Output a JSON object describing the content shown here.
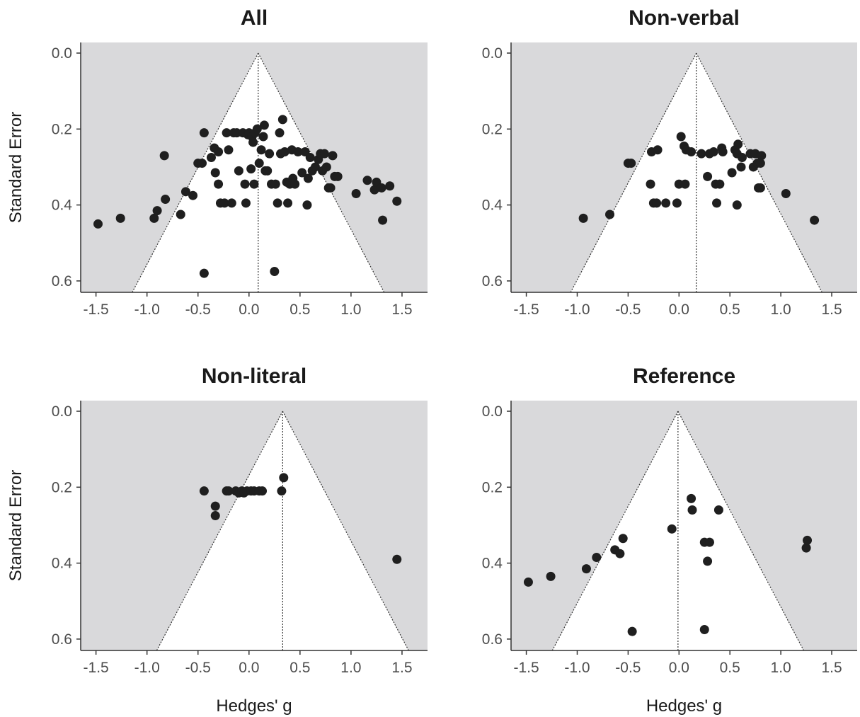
{
  "figure": {
    "ylabel": "Standard Error",
    "xlabel": "Hedges' g"
  },
  "colors": {
    "funnel_outside": "#d9d9db",
    "funnel_inside": "#ffffff",
    "points": "#1f1f1f",
    "axis": "#333333",
    "ticks_text": "#4d4d4d"
  },
  "chart_data": [
    {
      "type": "scatter",
      "subtype": "funnel",
      "title": "All",
      "xlabel": "",
      "ylabel": "Standard Error",
      "xlim": [
        -1.65,
        1.75
      ],
      "ylim": [
        0.0,
        0.63
      ],
      "y_reversed": true,
      "x_ticks": [
        -1.5,
        -1.0,
        -0.5,
        0.0,
        0.5,
        1.0,
        1.5
      ],
      "x_tick_labels": [
        "-1.5",
        "-1.0",
        "-0.5",
        "0.0",
        "0.5",
        "1.0",
        "1.5"
      ],
      "y_ticks": [
        0.0,
        0.2,
        0.4,
        0.6
      ],
      "y_tick_labels": [
        "0.0",
        "0.2",
        "0.4",
        "0.6"
      ],
      "funnel_center": 0.09,
      "funnel_apex_se": 0.0,
      "points": [
        [
          -1.48,
          0.45
        ],
        [
          -1.26,
          0.435
        ],
        [
          -0.93,
          0.435
        ],
        [
          -0.9,
          0.415
        ],
        [
          -0.82,
          0.385
        ],
        [
          -0.83,
          0.27
        ],
        [
          -0.67,
          0.425
        ],
        [
          -0.62,
          0.365
        ],
        [
          -0.55,
          0.375
        ],
        [
          -0.5,
          0.29
        ],
        [
          -0.46,
          0.29
        ],
        [
          -0.44,
          0.21
        ],
        [
          -0.44,
          0.58
        ],
        [
          -0.37,
          0.275
        ],
        [
          -0.34,
          0.25
        ],
        [
          -0.33,
          0.315
        ],
        [
          -0.3,
          0.26
        ],
        [
          -0.3,
          0.345
        ],
        [
          -0.28,
          0.395
        ],
        [
          -0.24,
          0.395
        ],
        [
          -0.22,
          0.21
        ],
        [
          -0.2,
          0.255
        ],
        [
          -0.17,
          0.395
        ],
        [
          -0.15,
          0.21
        ],
        [
          -0.12,
          0.21
        ],
        [
          -0.1,
          0.31
        ],
        [
          -0.06,
          0.21
        ],
        [
          -0.04,
          0.345
        ],
        [
          -0.03,
          0.395
        ],
        [
          -0.01,
          0.215
        ],
        [
          0.0,
          0.21
        ],
        [
          0.02,
          0.305
        ],
        [
          0.03,
          0.22
        ],
        [
          0.04,
          0.235
        ],
        [
          0.05,
          0.345
        ],
        [
          0.06,
          0.21
        ],
        [
          0.08,
          0.2
        ],
        [
          0.1,
          0.29
        ],
        [
          0.12,
          0.255
        ],
        [
          0.14,
          0.22
        ],
        [
          0.15,
          0.19
        ],
        [
          0.16,
          0.31
        ],
        [
          0.18,
          0.31
        ],
        [
          0.2,
          0.265
        ],
        [
          0.22,
          0.345
        ],
        [
          0.25,
          0.575
        ],
        [
          0.26,
          0.345
        ],
        [
          0.28,
          0.395
        ],
        [
          0.3,
          0.21
        ],
        [
          0.31,
          0.265
        ],
        [
          0.33,
          0.175
        ],
        [
          0.35,
          0.26
        ],
        [
          0.37,
          0.34
        ],
        [
          0.38,
          0.395
        ],
        [
          0.4,
          0.345
        ],
        [
          0.42,
          0.255
        ],
        [
          0.43,
          0.33
        ],
        [
          0.45,
          0.345
        ],
        [
          0.48,
          0.26
        ],
        [
          0.52,
          0.315
        ],
        [
          0.55,
          0.26
        ],
        [
          0.57,
          0.4
        ],
        [
          0.58,
          0.33
        ],
        [
          0.6,
          0.275
        ],
        [
          0.62,
          0.31
        ],
        [
          0.65,
          0.3
        ],
        [
          0.68,
          0.28
        ],
        [
          0.7,
          0.265
        ],
        [
          0.72,
          0.31
        ],
        [
          0.74,
          0.265
        ],
        [
          0.76,
          0.3
        ],
        [
          0.78,
          0.355
        ],
        [
          0.8,
          0.355
        ],
        [
          0.82,
          0.27
        ],
        [
          0.84,
          0.325
        ],
        [
          0.87,
          0.325
        ],
        [
          1.05,
          0.37
        ],
        [
          1.16,
          0.335
        ],
        [
          1.23,
          0.36
        ],
        [
          1.25,
          0.34
        ],
        [
          1.3,
          0.355
        ],
        [
          1.31,
          0.44
        ],
        [
          1.38,
          0.35
        ],
        [
          1.45,
          0.39
        ]
      ]
    },
    {
      "type": "scatter",
      "subtype": "funnel",
      "title": "Non-verbal",
      "xlabel": "",
      "ylabel": "",
      "xlim": [
        -1.65,
        1.75
      ],
      "ylim": [
        0.0,
        0.63
      ],
      "y_reversed": true,
      "x_ticks": [
        -1.5,
        -1.0,
        -0.5,
        0.0,
        0.5,
        1.0,
        1.5
      ],
      "x_tick_labels": [
        "-1.5",
        "-1.0",
        "-0.5",
        "0.0",
        "0.5",
        "1.0",
        "1.5"
      ],
      "y_ticks": [
        0.0,
        0.2,
        0.4,
        0.6
      ],
      "y_tick_labels": [
        "0.0",
        "0.2",
        "0.4",
        "0.6"
      ],
      "funnel_center": 0.17,
      "funnel_apex_se": 0.0,
      "points": [
        [
          -0.94,
          0.435
        ],
        [
          -0.68,
          0.425
        ],
        [
          -0.5,
          0.29
        ],
        [
          -0.47,
          0.29
        ],
        [
          -0.28,
          0.345
        ],
        [
          -0.27,
          0.26
        ],
        [
          -0.25,
          0.395
        ],
        [
          -0.22,
          0.395
        ],
        [
          -0.21,
          0.255
        ],
        [
          -0.13,
          0.395
        ],
        [
          -0.02,
          0.395
        ],
        [
          0.0,
          0.345
        ],
        [
          0.02,
          0.22
        ],
        [
          0.05,
          0.245
        ],
        [
          0.06,
          0.345
        ],
        [
          0.07,
          0.255
        ],
        [
          0.12,
          0.26
        ],
        [
          0.22,
          0.265
        ],
        [
          0.28,
          0.325
        ],
        [
          0.3,
          0.265
        ],
        [
          0.34,
          0.26
        ],
        [
          0.36,
          0.345
        ],
        [
          0.37,
          0.395
        ],
        [
          0.4,
          0.345
        ],
        [
          0.42,
          0.25
        ],
        [
          0.43,
          0.26
        ],
        [
          0.52,
          0.315
        ],
        [
          0.55,
          0.255
        ],
        [
          0.57,
          0.4
        ],
        [
          0.57,
          0.265
        ],
        [
          0.58,
          0.24
        ],
        [
          0.61,
          0.3
        ],
        [
          0.62,
          0.275
        ],
        [
          0.7,
          0.265
        ],
        [
          0.73,
          0.3
        ],
        [
          0.75,
          0.265
        ],
        [
          0.77,
          0.29
        ],
        [
          0.78,
          0.355
        ],
        [
          0.8,
          0.355
        ],
        [
          0.8,
          0.29
        ],
        [
          0.81,
          0.27
        ],
        [
          1.05,
          0.37
        ],
        [
          1.33,
          0.44
        ]
      ]
    },
    {
      "type": "scatter",
      "subtype": "funnel",
      "title": "Non-literal",
      "xlabel": "Hedges' g",
      "ylabel": "Standard Error",
      "xlim": [
        -1.65,
        1.75
      ],
      "ylim": [
        0.0,
        0.63
      ],
      "y_reversed": true,
      "x_ticks": [
        -1.5,
        -1.0,
        -0.5,
        0.0,
        0.5,
        1.0,
        1.5
      ],
      "x_tick_labels": [
        "-1.5",
        "-1.0",
        "-0.5",
        "0.0",
        "0.5",
        "1.0",
        "1.5"
      ],
      "y_ticks": [
        0.0,
        0.2,
        0.4,
        0.6
      ],
      "y_tick_labels": [
        "0.0",
        "0.2",
        "0.4",
        "0.6"
      ],
      "funnel_center": 0.33,
      "funnel_apex_se": 0.0,
      "points": [
        [
          -0.44,
          0.21
        ],
        [
          -0.33,
          0.25
        ],
        [
          -0.33,
          0.275
        ],
        [
          -0.22,
          0.21
        ],
        [
          -0.2,
          0.21
        ],
        [
          -0.13,
          0.21
        ],
        [
          -0.1,
          0.215
        ],
        [
          -0.07,
          0.21
        ],
        [
          -0.05,
          0.215
        ],
        [
          -0.02,
          0.21
        ],
        [
          0.02,
          0.21
        ],
        [
          0.05,
          0.21
        ],
        [
          0.1,
          0.21
        ],
        [
          0.13,
          0.21
        ],
        [
          0.32,
          0.21
        ],
        [
          0.34,
          0.175
        ],
        [
          1.45,
          0.39
        ]
      ]
    },
    {
      "type": "scatter",
      "subtype": "funnel",
      "title": "Reference",
      "xlabel": "Hedges' g",
      "ylabel": "",
      "xlim": [
        -1.65,
        1.75
      ],
      "ylim": [
        0.0,
        0.63
      ],
      "y_reversed": true,
      "x_ticks": [
        -1.5,
        -1.0,
        -0.5,
        0.0,
        0.5,
        1.0,
        1.5
      ],
      "x_tick_labels": [
        "-1.5",
        "-1.0",
        "-0.5",
        "0.0",
        "0.5",
        "1.0",
        "1.5"
      ],
      "y_ticks": [
        0.0,
        0.2,
        0.4,
        0.6
      ],
      "y_tick_labels": [
        "0.0",
        "0.2",
        "0.4",
        "0.6"
      ],
      "funnel_center": -0.01,
      "funnel_apex_se": 0.0,
      "points": [
        [
          -1.48,
          0.45
        ],
        [
          -1.26,
          0.435
        ],
        [
          -0.91,
          0.415
        ],
        [
          -0.81,
          0.385
        ],
        [
          -0.63,
          0.365
        ],
        [
          -0.58,
          0.375
        ],
        [
          -0.55,
          0.335
        ],
        [
          -0.46,
          0.58
        ],
        [
          -0.07,
          0.31
        ],
        [
          0.12,
          0.23
        ],
        [
          0.13,
          0.26
        ],
        [
          0.25,
          0.575
        ],
        [
          0.25,
          0.345
        ],
        [
          0.28,
          0.395
        ],
        [
          0.3,
          0.345
        ],
        [
          0.39,
          0.26
        ],
        [
          1.25,
          0.36
        ],
        [
          1.26,
          0.34
        ]
      ]
    }
  ]
}
